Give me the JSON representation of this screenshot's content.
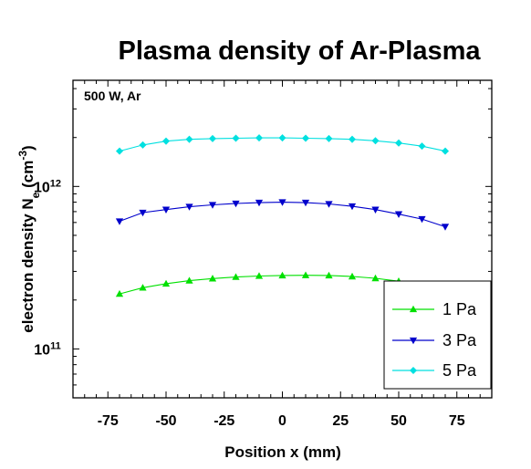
{
  "chart_data": {
    "type": "line",
    "title": "Plasma density of Ar-Plasma",
    "annotation": "500 W, Ar",
    "xlabel": "Position x (mm)",
    "ylabel": "electron density N",
    "ylabel_sub": "e",
    "ylabel_unit_open": " (cm",
    "ylabel_unit_exp": "-3",
    "ylabel_unit_close": ")",
    "x_scale": "linear",
    "y_scale": "log",
    "xlim": [
      -90,
      90
    ],
    "ylim": [
      50000000000.0,
      4500000000000.0
    ],
    "x_ticks": [
      -75,
      -50,
      -25,
      0,
      25,
      50,
      75
    ],
    "x_tick_labels": [
      "-75",
      "-50",
      "-25",
      "0",
      "25",
      "50",
      "75"
    ],
    "y_ticks": [
      {
        "value": 100000000000.0,
        "base": "10",
        "exp": "11"
      },
      {
        "value": 1000000000000.0,
        "base": "10",
        "exp": "12"
      }
    ],
    "legend_position": "bottom-right",
    "grid": false,
    "x": [
      -70,
      -60,
      -50,
      -40,
      -30,
      -20,
      -10,
      0,
      10,
      20,
      30,
      40,
      50,
      60,
      70
    ],
    "series": [
      {
        "name": "1 Pa",
        "color": "#00e000",
        "marker": "triangle-up",
        "values": [
          218000000000.0,
          238000000000.0,
          252000000000.0,
          263000000000.0,
          271000000000.0,
          277000000000.0,
          281000000000.0,
          283000000000.0,
          284000000000.0,
          283000000000.0,
          279000000000.0,
          272000000000.0,
          261000000000.0,
          247000000000.0,
          228000000000.0
        ]
      },
      {
        "name": "3 Pa",
        "color": "#0000cc",
        "marker": "triangle-down",
        "values": [
          610000000000.0,
          690000000000.0,
          720000000000.0,
          750000000000.0,
          770000000000.0,
          785000000000.0,
          795000000000.0,
          800000000000.0,
          795000000000.0,
          780000000000.0,
          755000000000.0,
          720000000000.0,
          675000000000.0,
          630000000000.0,
          565000000000.0
        ]
      },
      {
        "name": "5 Pa",
        "color": "#00e0e0",
        "marker": "diamond",
        "values": [
          1650000000000.0,
          1800000000000.0,
          1900000000000.0,
          1950000000000.0,
          1970000000000.0,
          1980000000000.0,
          1990000000000.0,
          1990000000000.0,
          1980000000000.0,
          1970000000000.0,
          1950000000000.0,
          1910000000000.0,
          1850000000000.0,
          1770000000000.0,
          1650000000000.0
        ]
      }
    ]
  }
}
